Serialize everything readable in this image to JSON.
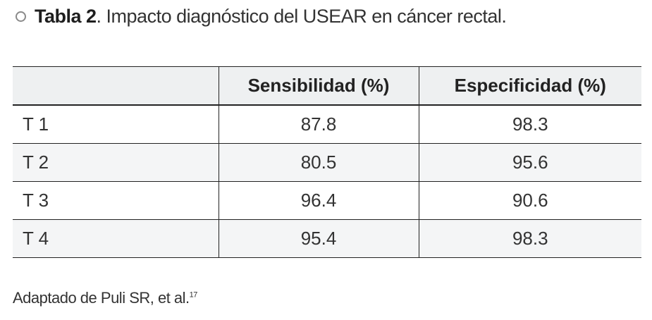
{
  "title": {
    "label": "Tabla 2",
    "text": ". Impacto diagnóstico del USEAR en cáncer rectal."
  },
  "table": {
    "header": [
      "Sensibilidad (%)",
      "Especificidad (%)"
    ],
    "rows": [
      [
        "T 1",
        87.8,
        98.3
      ],
      [
        "T 2",
        80.5,
        95.6
      ],
      [
        "T 3",
        96.4,
        90.6
      ],
      [
        "T 4",
        95.4,
        98.3
      ]
    ]
  },
  "footer": {
    "text": "Adaptado de Puli SR, et al.",
    "ref": "17"
  }
}
